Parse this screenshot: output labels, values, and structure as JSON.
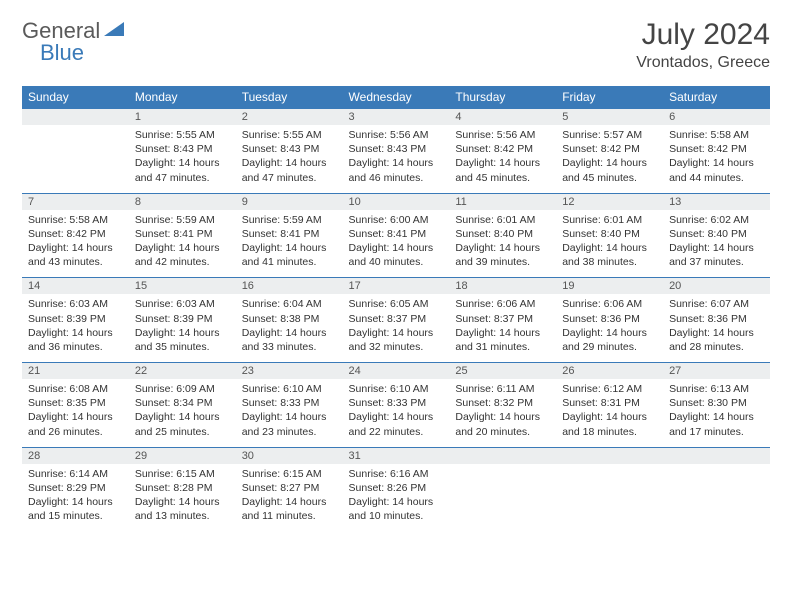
{
  "logo": {
    "text1": "General",
    "text2": "Blue"
  },
  "title": "July 2024",
  "location": "Vrontados, Greece",
  "colors": {
    "header_bg": "#3a7ab8",
    "header_text": "#ffffff",
    "daynum_bg": "#eceeef",
    "border": "#3a7ab8",
    "text": "#333333",
    "logo_gray": "#5a5a5a",
    "logo_blue": "#3a7ab8"
  },
  "weekdays": [
    "Sunday",
    "Monday",
    "Tuesday",
    "Wednesday",
    "Thursday",
    "Friday",
    "Saturday"
  ],
  "weeks": [
    [
      null,
      {
        "n": "1",
        "sr": "5:55 AM",
        "ss": "8:43 PM",
        "dl": "14 hours and 47 minutes."
      },
      {
        "n": "2",
        "sr": "5:55 AM",
        "ss": "8:43 PM",
        "dl": "14 hours and 47 minutes."
      },
      {
        "n": "3",
        "sr": "5:56 AM",
        "ss": "8:43 PM",
        "dl": "14 hours and 46 minutes."
      },
      {
        "n": "4",
        "sr": "5:56 AM",
        "ss": "8:42 PM",
        "dl": "14 hours and 45 minutes."
      },
      {
        "n": "5",
        "sr": "5:57 AM",
        "ss": "8:42 PM",
        "dl": "14 hours and 45 minutes."
      },
      {
        "n": "6",
        "sr": "5:58 AM",
        "ss": "8:42 PM",
        "dl": "14 hours and 44 minutes."
      }
    ],
    [
      {
        "n": "7",
        "sr": "5:58 AM",
        "ss": "8:42 PM",
        "dl": "14 hours and 43 minutes."
      },
      {
        "n": "8",
        "sr": "5:59 AM",
        "ss": "8:41 PM",
        "dl": "14 hours and 42 minutes."
      },
      {
        "n": "9",
        "sr": "5:59 AM",
        "ss": "8:41 PM",
        "dl": "14 hours and 41 minutes."
      },
      {
        "n": "10",
        "sr": "6:00 AM",
        "ss": "8:41 PM",
        "dl": "14 hours and 40 minutes."
      },
      {
        "n": "11",
        "sr": "6:01 AM",
        "ss": "8:40 PM",
        "dl": "14 hours and 39 minutes."
      },
      {
        "n": "12",
        "sr": "6:01 AM",
        "ss": "8:40 PM",
        "dl": "14 hours and 38 minutes."
      },
      {
        "n": "13",
        "sr": "6:02 AM",
        "ss": "8:40 PM",
        "dl": "14 hours and 37 minutes."
      }
    ],
    [
      {
        "n": "14",
        "sr": "6:03 AM",
        "ss": "8:39 PM",
        "dl": "14 hours and 36 minutes."
      },
      {
        "n": "15",
        "sr": "6:03 AM",
        "ss": "8:39 PM",
        "dl": "14 hours and 35 minutes."
      },
      {
        "n": "16",
        "sr": "6:04 AM",
        "ss": "8:38 PM",
        "dl": "14 hours and 33 minutes."
      },
      {
        "n": "17",
        "sr": "6:05 AM",
        "ss": "8:37 PM",
        "dl": "14 hours and 32 minutes."
      },
      {
        "n": "18",
        "sr": "6:06 AM",
        "ss": "8:37 PM",
        "dl": "14 hours and 31 minutes."
      },
      {
        "n": "19",
        "sr": "6:06 AM",
        "ss": "8:36 PM",
        "dl": "14 hours and 29 minutes."
      },
      {
        "n": "20",
        "sr": "6:07 AM",
        "ss": "8:36 PM",
        "dl": "14 hours and 28 minutes."
      }
    ],
    [
      {
        "n": "21",
        "sr": "6:08 AM",
        "ss": "8:35 PM",
        "dl": "14 hours and 26 minutes."
      },
      {
        "n": "22",
        "sr": "6:09 AM",
        "ss": "8:34 PM",
        "dl": "14 hours and 25 minutes."
      },
      {
        "n": "23",
        "sr": "6:10 AM",
        "ss": "8:33 PM",
        "dl": "14 hours and 23 minutes."
      },
      {
        "n": "24",
        "sr": "6:10 AM",
        "ss": "8:33 PM",
        "dl": "14 hours and 22 minutes."
      },
      {
        "n": "25",
        "sr": "6:11 AM",
        "ss": "8:32 PM",
        "dl": "14 hours and 20 minutes."
      },
      {
        "n": "26",
        "sr": "6:12 AM",
        "ss": "8:31 PM",
        "dl": "14 hours and 18 minutes."
      },
      {
        "n": "27",
        "sr": "6:13 AM",
        "ss": "8:30 PM",
        "dl": "14 hours and 17 minutes."
      }
    ],
    [
      {
        "n": "28",
        "sr": "6:14 AM",
        "ss": "8:29 PM",
        "dl": "14 hours and 15 minutes."
      },
      {
        "n": "29",
        "sr": "6:15 AM",
        "ss": "8:28 PM",
        "dl": "14 hours and 13 minutes."
      },
      {
        "n": "30",
        "sr": "6:15 AM",
        "ss": "8:27 PM",
        "dl": "14 hours and 11 minutes."
      },
      {
        "n": "31",
        "sr": "6:16 AM",
        "ss": "8:26 PM",
        "dl": "14 hours and 10 minutes."
      },
      null,
      null,
      null
    ]
  ],
  "labels": {
    "sunrise": "Sunrise:",
    "sunset": "Sunset:",
    "daylight": "Daylight:"
  }
}
